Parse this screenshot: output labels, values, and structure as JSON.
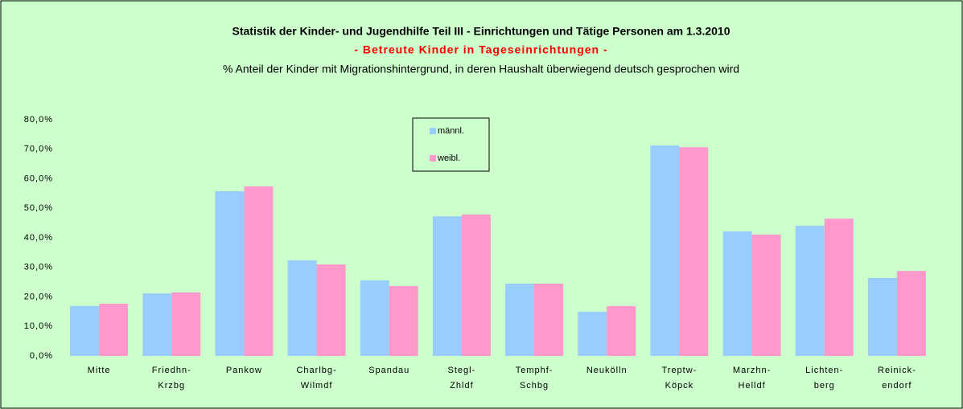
{
  "chart_data": {
    "type": "bar",
    "title": "Statistik der Kinder- und Jugendhilfe Teil III - Einrichtungen und Tätige Personen am 1.3.2010",
    "subtitle": "- Betreute Kinder in Tageseinrichtungen -",
    "annotation": "% Anteil der Kinder mit Migrationshintergrund, in deren Haushalt überwiegend deutsch gesprochen wird",
    "categories": [
      "Mitte",
      "Friedhn-\nKrzbg",
      "Pankow",
      "Charlbg-\nWilmdf",
      "Spandau",
      "Stegl-\nZhldf",
      "Temphf-\nSchbg",
      "Neukölln",
      "Treptw-\nKöpck",
      "Marzhn-\nHelldf",
      "Lichten-\nberg",
      "Reinick-\nendorf"
    ],
    "series": [
      {
        "name": "männl.",
        "color": "#99ccff",
        "values": [
          16.9,
          21.2,
          55.8,
          32.4,
          25.6,
          47.3,
          24.5,
          15.0,
          71.3,
          42.2,
          44.1,
          26.4
        ]
      },
      {
        "name": "weibl.",
        "color": "#ff99cc",
        "values": [
          17.7,
          21.5,
          57.4,
          31.0,
          23.7,
          47.9,
          24.5,
          16.9,
          70.7,
          41.1,
          46.5,
          28.8
        ]
      }
    ],
    "ylim": [
      0,
      80
    ],
    "yticks": [
      {
        "value": 0,
        "label": "0,0%"
      },
      {
        "value": 10,
        "label": "10,0%"
      },
      {
        "value": 20,
        "label": "20,0%"
      },
      {
        "value": 30,
        "label": "30,0%"
      },
      {
        "value": 40,
        "label": "40,0%"
      },
      {
        "value": 50,
        "label": "50,0%"
      },
      {
        "value": 60,
        "label": "60,0%"
      },
      {
        "value": 70,
        "label": "70,0%"
      },
      {
        "value": 80,
        "label": "80,0%"
      }
    ]
  }
}
